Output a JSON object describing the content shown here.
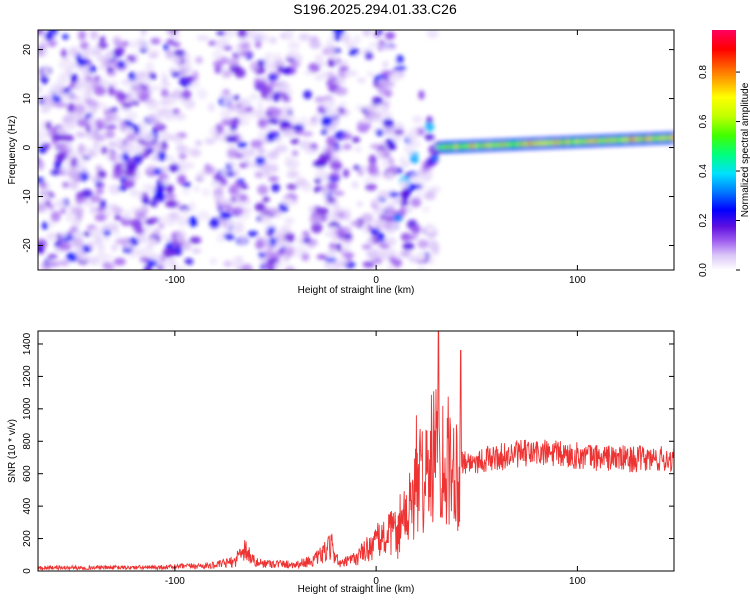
{
  "title": "S196.2025.294.01.33.C26",
  "chart_data": [
    {
      "type": "heatmap",
      "xlabel": "Height of straight line (km)",
      "ylabel": "Frequency (Hz)",
      "xlim": [
        -168,
        148
      ],
      "ylim": [
        -25,
        24
      ],
      "xticks": [
        -100,
        0,
        100
      ],
      "yticks": [
        -20,
        -10,
        0,
        10,
        20
      ],
      "grid": false,
      "colorbar": {
        "label": "Normalized spectral amplitude",
        "range": [
          0,
          0.97
        ],
        "ticks": [
          "0.0",
          "0.2",
          "0.4",
          "0.6",
          "0.8"
        ],
        "tick_values": [
          0.0,
          0.2,
          0.4,
          0.6,
          0.8
        ],
        "colors": [
          "#ffffff",
          "#dcc8f8",
          "#a060f0",
          "#6010e0",
          "#0000ff",
          "#0080ff",
          "#00e0ff",
          "#00ff80",
          "#40ff00",
          "#c0ff00",
          "#ffff00",
          "#ff8000",
          "#ff0000",
          "#ff0060"
        ]
      },
      "features": {
        "noise_region_km": [
          -168,
          30
        ],
        "tone_region_km": [
          30,
          148
        ],
        "tone_frequency_hz": [
          0,
          2
        ],
        "tone_peak_amplitude": 0.9
      }
    },
    {
      "type": "line",
      "xlabel": "Height of straight line (km)",
      "ylabel": "SNR (10 * v/v)",
      "xlim": [
        -168,
        148
      ],
      "ylim": [
        0,
        1480
      ],
      "xticks": [
        -100,
        0,
        100
      ],
      "yticks": [
        0,
        200,
        400,
        600,
        800,
        1000,
        1200,
        1400
      ],
      "color": "#ee3333",
      "series_envelope": {
        "x": [
          -168,
          -110,
          -80,
          -70,
          -66,
          -60,
          -40,
          -30,
          -22,
          -18,
          -10,
          0,
          10,
          15,
          20,
          25,
          30,
          35,
          40,
          45,
          50,
          60,
          70,
          80,
          90,
          100,
          110,
          120,
          130,
          148
        ],
        "y": [
          20,
          22,
          35,
          60,
          150,
          50,
          40,
          70,
          150,
          40,
          80,
          180,
          250,
          380,
          550,
          700,
          800,
          760,
          700,
          670,
          680,
          700,
          720,
          730,
          720,
          710,
          700,
          695,
          690,
          690
        ]
      },
      "spikes": [
        {
          "x": 31,
          "y": 1480
        },
        {
          "x": 42,
          "y": 1360
        },
        {
          "x": 20,
          "y": 960
        }
      ]
    }
  ]
}
